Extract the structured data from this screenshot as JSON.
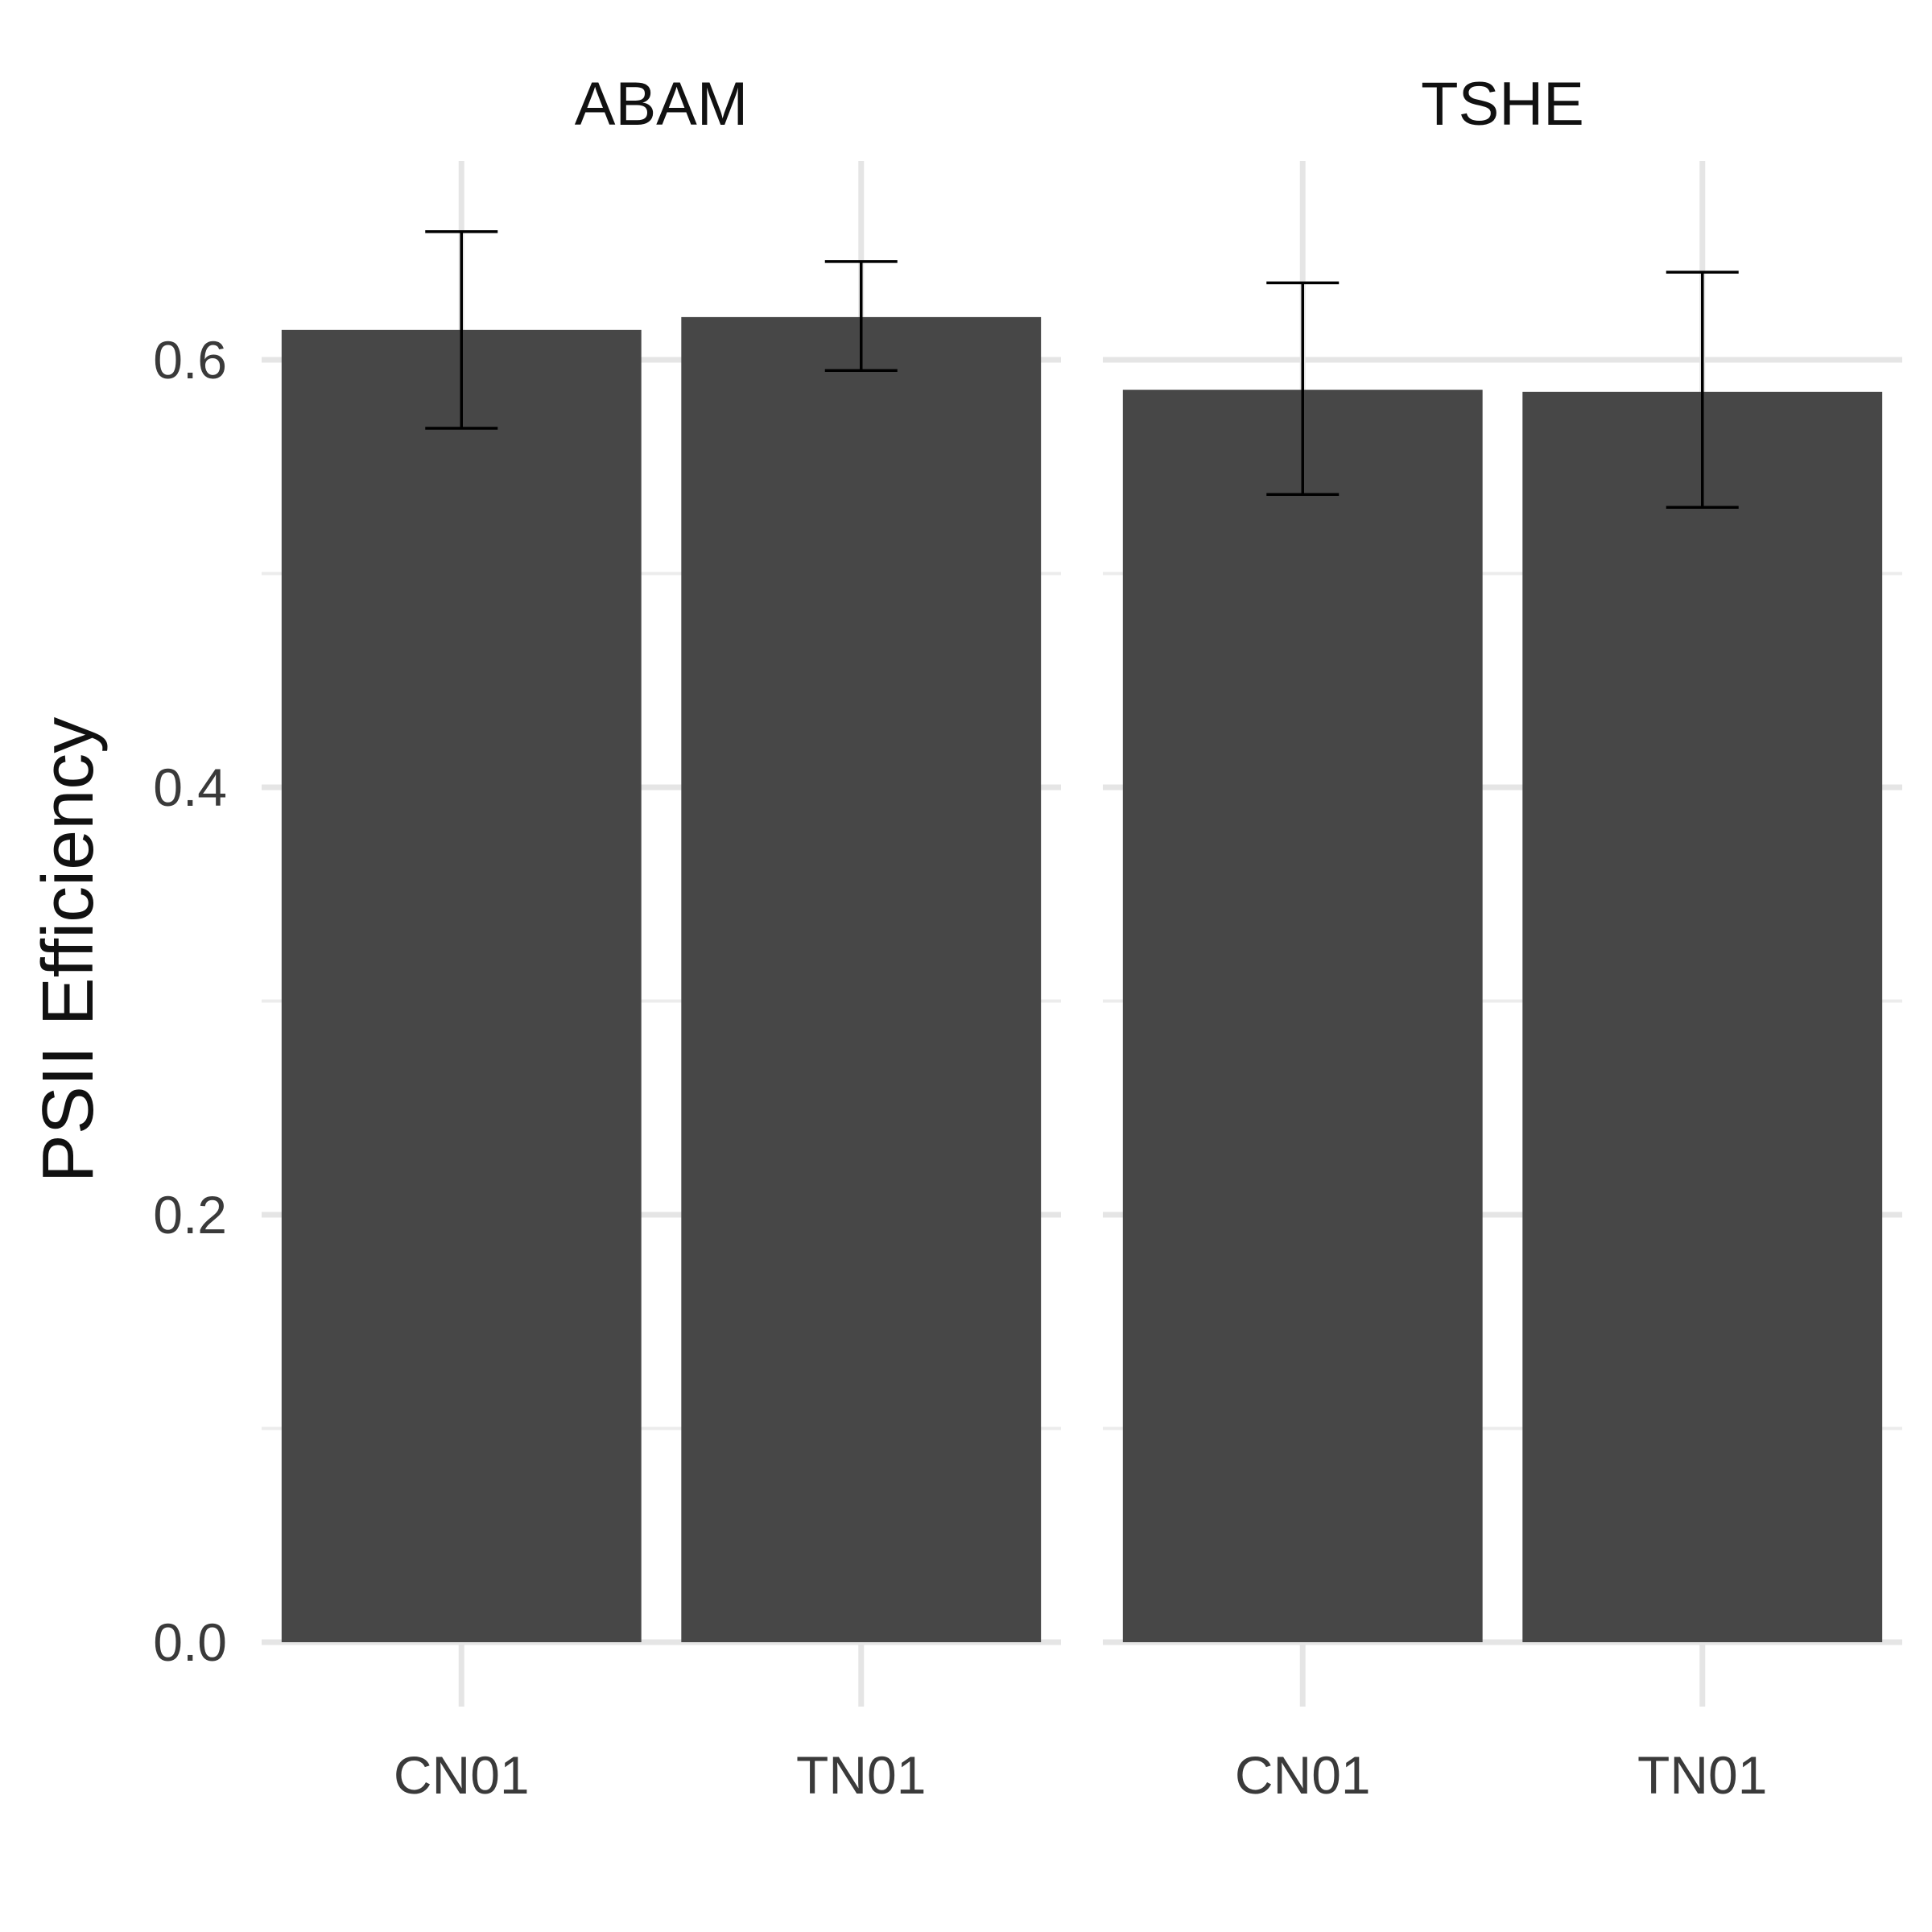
{
  "chart_data": {
    "type": "bar",
    "ylabel": "PSII Efficiency",
    "xlabel": "",
    "ylim": [
      0,
      0.69
    ],
    "y_ticks": [
      "0.0",
      "0.2",
      "0.4",
      "0.6"
    ],
    "y_tick_values": [
      0.0,
      0.2,
      0.4,
      0.6
    ],
    "grid": true,
    "bar_color": "#474747",
    "error_bar_color": "#000000",
    "panels": [
      {
        "strip": "ABAM",
        "categories": [
          "CN01",
          "TN01"
        ],
        "values": [
          0.614,
          0.62
        ],
        "error_low": [
          0.568,
          0.595
        ],
        "error_high": [
          0.66,
          0.646
        ]
      },
      {
        "strip": "TSHE",
        "categories": [
          "CN01",
          "TN01"
        ],
        "values": [
          0.586,
          0.585
        ],
        "error_low": [
          0.537,
          0.531
        ],
        "error_high": [
          0.636,
          0.641
        ]
      }
    ]
  }
}
